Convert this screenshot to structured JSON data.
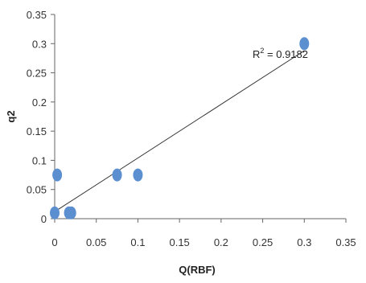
{
  "chart_data": {
    "type": "scatter",
    "xlabel": "Q(RBF)",
    "ylabel": "q2",
    "xlim": [
      0,
      0.35
    ],
    "ylim": [
      0,
      0.35
    ],
    "x_ticks": [
      "0",
      "0.05",
      "0.1",
      "0.15",
      "0.2",
      "0.25",
      "0.3",
      "0.35"
    ],
    "y_ticks": [
      "0",
      "0.05",
      "0.1",
      "0.15",
      "0.2",
      "0.25",
      "0.3",
      "0.35"
    ],
    "grid": false,
    "points": [
      {
        "x": 0.0,
        "y": 0.01
      },
      {
        "x": 0.003,
        "y": 0.075
      },
      {
        "x": 0.017,
        "y": 0.01
      },
      {
        "x": 0.02,
        "y": 0.01
      },
      {
        "x": 0.075,
        "y": 0.075
      },
      {
        "x": 0.1,
        "y": 0.075
      },
      {
        "x": 0.3,
        "y": 0.3
      }
    ],
    "trendline": {
      "x": [
        0,
        0.3
      ],
      "y": [
        0.012,
        0.288
      ]
    },
    "annotation": {
      "label": "R",
      "superscript": "2",
      "text": " = 0.9182"
    },
    "colors": {
      "marker": "#5b8fd0",
      "trendline": "#333333",
      "axis": "#666666"
    }
  }
}
